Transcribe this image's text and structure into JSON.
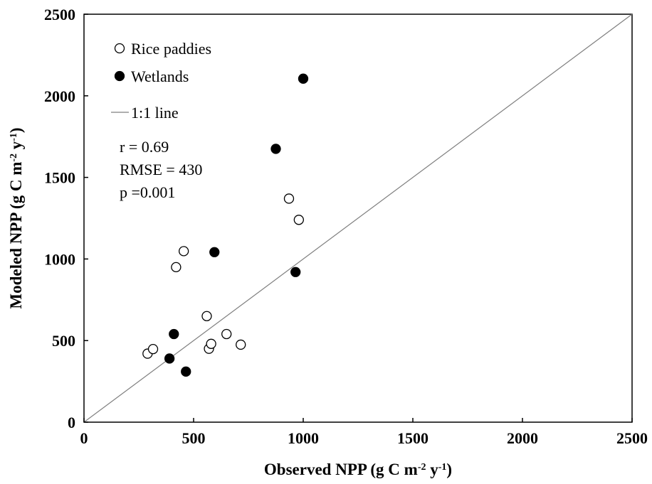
{
  "chart_data": {
    "type": "scatter",
    "title": "",
    "xlabel": "Observed NPP (g C m-2 y-1)",
    "ylabel": "Modeled NPP (g C m-2 y-1)",
    "xlim": [
      0,
      2500
    ],
    "ylim": [
      0,
      2500
    ],
    "xticks": [
      0,
      500,
      1000,
      1500,
      2000,
      2500
    ],
    "yticks": [
      0,
      500,
      1000,
      1500,
      2000,
      2500
    ],
    "grid": false,
    "legend_position": "top-left",
    "series": [
      {
        "name": "Rice paddies",
        "marker": "open-circle",
        "color": "#000000",
        "points": [
          {
            "x": 290,
            "y": 420
          },
          {
            "x": 315,
            "y": 448
          },
          {
            "x": 420,
            "y": 950
          },
          {
            "x": 455,
            "y": 1048
          },
          {
            "x": 560,
            "y": 650
          },
          {
            "x": 570,
            "y": 450
          },
          {
            "x": 580,
            "y": 480
          },
          {
            "x": 650,
            "y": 540
          },
          {
            "x": 715,
            "y": 475
          },
          {
            "x": 935,
            "y": 1370
          },
          {
            "x": 980,
            "y": 1240
          }
        ]
      },
      {
        "name": "Wetlands",
        "marker": "filled-circle",
        "color": "#000000",
        "points": [
          {
            "x": 390,
            "y": 390
          },
          {
            "x": 410,
            "y": 540
          },
          {
            "x": 465,
            "y": 310
          },
          {
            "x": 595,
            "y": 1042
          },
          {
            "x": 875,
            "y": 1675
          },
          {
            "x": 965,
            "y": 920
          },
          {
            "x": 1000,
            "y": 2105
          }
        ]
      }
    ],
    "reference_line": {
      "name": "1:1 line",
      "from": [
        0,
        0
      ],
      "to": [
        2500,
        2500
      ],
      "color": "#7f7f7f"
    },
    "annotations": [
      "r = 0.69",
      "RMSE = 430",
      "p =0.001"
    ]
  },
  "axis_text": {
    "x_main": "Observed NPP (g C m",
    "y_main": "Modeled NPP (g C m",
    "sup1": "-2",
    "mid": " y",
    "sup2": "-1",
    "close": ")"
  }
}
